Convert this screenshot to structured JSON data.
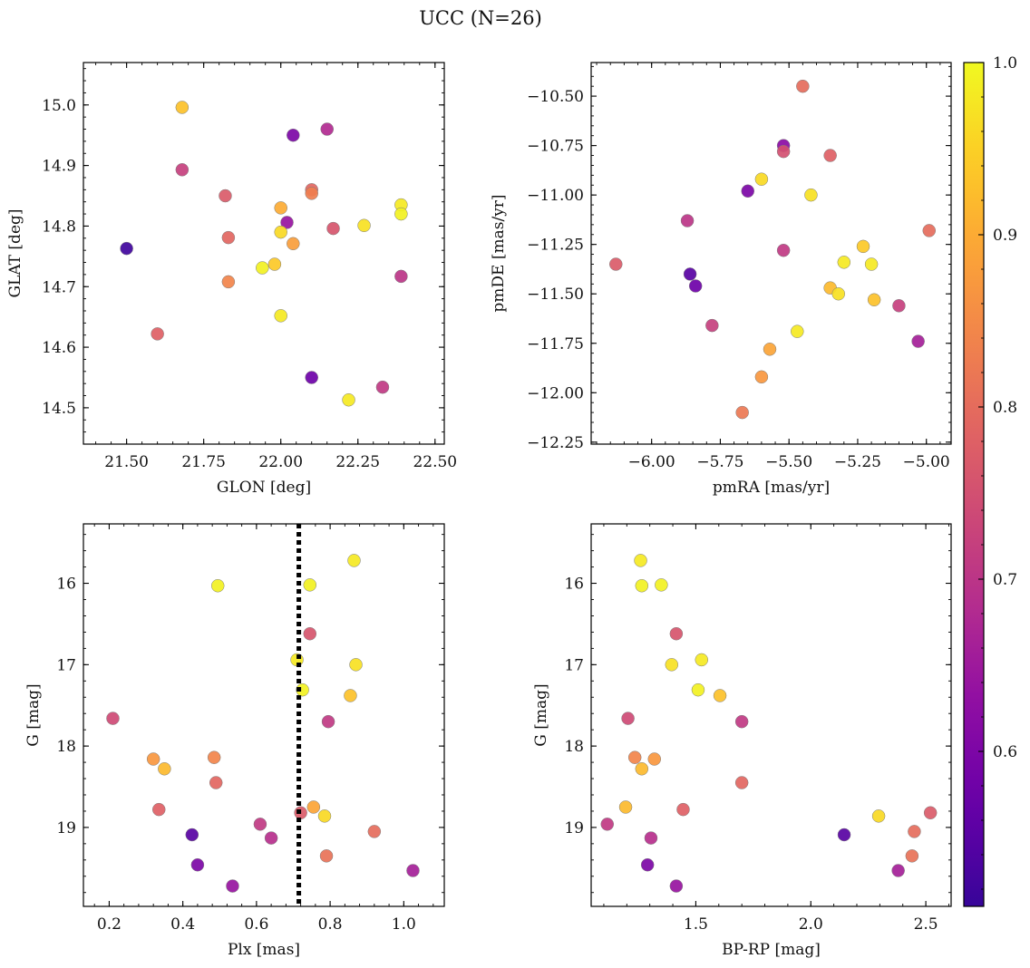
{
  "figure": {
    "title": "UCC (N=26)"
  },
  "colorbar": {
    "cmap": "plasma",
    "range": [
      0.51,
      1.0
    ],
    "ticks": [
      0.6,
      0.7,
      0.8,
      0.9,
      1.0
    ],
    "tick_labels": [
      "0.6",
      "0.7",
      "0.8",
      "0.9",
      "1.0"
    ]
  },
  "chart_data": [
    {
      "type": "scatter",
      "title": "",
      "xlabel": "GLON [deg]",
      "ylabel": "GLAT [deg]",
      "xlim": [
        21.36,
        22.53
      ],
      "ylim": [
        14.44,
        15.07
      ],
      "xticks": [
        21.5,
        21.75,
        22.0,
        22.25,
        22.5
      ],
      "xtick_labels": [
        "21.50",
        "21.75",
        "22.00",
        "22.25",
        "22.50"
      ],
      "yticks": [
        14.5,
        14.6,
        14.7,
        14.8,
        14.9,
        15.0
      ],
      "ytick_labels": [
        "14.5",
        "14.6",
        "14.7",
        "14.8",
        "14.9",
        "15.0"
      ],
      "inverted_y": false,
      "points": [
        {
          "x": 21.5,
          "y": 14.763,
          "c": 0.52
        },
        {
          "x": 21.6,
          "y": 14.622,
          "c": 0.78
        },
        {
          "x": 21.68,
          "y": 14.996,
          "c": 0.93
        },
        {
          "x": 21.68,
          "y": 14.893,
          "c": 0.72
        },
        {
          "x": 21.82,
          "y": 14.85,
          "c": 0.77
        },
        {
          "x": 21.83,
          "y": 14.781,
          "c": 0.79
        },
        {
          "x": 21.83,
          "y": 14.708,
          "c": 0.84
        },
        {
          "x": 21.94,
          "y": 14.731,
          "c": 0.99
        },
        {
          "x": 21.98,
          "y": 14.737,
          "c": 0.94
        },
        {
          "x": 22.0,
          "y": 14.83,
          "c": 0.9
        },
        {
          "x": 22.0,
          "y": 14.79,
          "c": 0.96
        },
        {
          "x": 22.0,
          "y": 14.652,
          "c": 0.98
        },
        {
          "x": 22.02,
          "y": 14.806,
          "c": 0.64
        },
        {
          "x": 22.04,
          "y": 14.95,
          "c": 0.6
        },
        {
          "x": 22.04,
          "y": 14.771,
          "c": 0.88
        },
        {
          "x": 22.1,
          "y": 14.854,
          "c": 0.83
        },
        {
          "x": 22.1,
          "y": 14.86,
          "c": 0.79
        },
        {
          "x": 22.1,
          "y": 14.55,
          "c": 0.58
        },
        {
          "x": 22.15,
          "y": 14.96,
          "c": 0.68
        },
        {
          "x": 22.17,
          "y": 14.796,
          "c": 0.76
        },
        {
          "x": 22.22,
          "y": 14.513,
          "c": 0.98
        },
        {
          "x": 22.27,
          "y": 14.801,
          "c": 0.97
        },
        {
          "x": 22.33,
          "y": 14.534,
          "c": 0.71
        },
        {
          "x": 22.39,
          "y": 14.835,
          "c": 0.98
        },
        {
          "x": 22.39,
          "y": 14.82,
          "c": 0.99
        },
        {
          "x": 22.39,
          "y": 14.717,
          "c": 0.7
        }
      ]
    },
    {
      "type": "scatter",
      "title": "",
      "xlabel": "pmRA [mas/yr]",
      "ylabel": "pmDE [mas/yr]",
      "xlim": [
        -6.22,
        -4.91
      ],
      "ylim": [
        -12.26,
        -10.33
      ],
      "xticks": [
        -6.0,
        -5.75,
        -5.5,
        -5.25,
        -5.0
      ],
      "xtick_labels": [
        "−6.00",
        "−5.75",
        "−5.50",
        "−5.25",
        "−5.00"
      ],
      "yticks": [
        -12.25,
        -12.0,
        -11.75,
        -11.5,
        -11.25,
        -11.0,
        -10.75,
        -10.5
      ],
      "ytick_labels": [
        "−12.25",
        "−12.00",
        "−11.75",
        "−11.50",
        "−11.25",
        "−11.00",
        "−10.75",
        "−10.50"
      ],
      "inverted_y": false,
      "points": [
        {
          "x": -6.13,
          "y": -11.35,
          "c": 0.77
        },
        {
          "x": -5.87,
          "y": -11.13,
          "c": 0.7
        },
        {
          "x": -5.86,
          "y": -11.4,
          "c": 0.55
        },
        {
          "x": -5.84,
          "y": -11.46,
          "c": 0.58
        },
        {
          "x": -5.78,
          "y": -11.66,
          "c": 0.72
        },
        {
          "x": -5.65,
          "y": -10.98,
          "c": 0.6
        },
        {
          "x": -5.67,
          "y": -12.1,
          "c": 0.82
        },
        {
          "x": -5.6,
          "y": -10.92,
          "c": 0.96
        },
        {
          "x": -5.6,
          "y": -11.92,
          "c": 0.87
        },
        {
          "x": -5.57,
          "y": -11.78,
          "c": 0.89
        },
        {
          "x": -5.52,
          "y": -10.78,
          "c": 0.75
        },
        {
          "x": -5.52,
          "y": -10.75,
          "c": 0.62
        },
        {
          "x": -5.52,
          "y": -11.28,
          "c": 0.71
        },
        {
          "x": -5.47,
          "y": -11.69,
          "c": 0.98
        },
        {
          "x": -5.45,
          "y": -10.45,
          "c": 0.8
        },
        {
          "x": -5.42,
          "y": -11.0,
          "c": 0.97
        },
        {
          "x": -5.35,
          "y": -10.8,
          "c": 0.78
        },
        {
          "x": -5.35,
          "y": -11.47,
          "c": 0.92
        },
        {
          "x": -5.32,
          "y": -11.5,
          "c": 0.97
        },
        {
          "x": -5.3,
          "y": -11.34,
          "c": 0.98
        },
        {
          "x": -5.23,
          "y": -11.26,
          "c": 0.94
        },
        {
          "x": -5.2,
          "y": -11.35,
          "c": 0.98
        },
        {
          "x": -5.19,
          "y": -11.53,
          "c": 0.93
        },
        {
          "x": -5.1,
          "y": -11.56,
          "c": 0.72
        },
        {
          "x": -5.03,
          "y": -11.74,
          "c": 0.66
        },
        {
          "x": -4.99,
          "y": -11.18,
          "c": 0.8
        }
      ]
    },
    {
      "type": "scatter",
      "title": "",
      "xlabel": "Plx [mas]",
      "ylabel": "G [mag]",
      "xlim": [
        0.13,
        1.11
      ],
      "ylim": [
        19.97,
        15.27
      ],
      "xticks": [
        0.2,
        0.4,
        0.6,
        0.8,
        1.0
      ],
      "xtick_labels": [
        "0.2",
        "0.4",
        "0.6",
        "0.8",
        "1.0"
      ],
      "yticks": [
        16,
        17,
        18,
        19
      ],
      "ytick_labels": [
        "16",
        "17",
        "18",
        "19"
      ],
      "inverted_y": true,
      "vline": 0.715,
      "points": [
        {
          "x": 0.21,
          "y": 17.66,
          "c": 0.74
        },
        {
          "x": 0.32,
          "y": 18.16,
          "c": 0.87
        },
        {
          "x": 0.335,
          "y": 18.78,
          "c": 0.78
        },
        {
          "x": 0.35,
          "y": 18.28,
          "c": 0.92
        },
        {
          "x": 0.425,
          "y": 19.09,
          "c": 0.55
        },
        {
          "x": 0.44,
          "y": 19.46,
          "c": 0.6
        },
        {
          "x": 0.485,
          "y": 18.14,
          "c": 0.84
        },
        {
          "x": 0.49,
          "y": 18.45,
          "c": 0.79
        },
        {
          "x": 0.495,
          "y": 16.03,
          "c": 0.99
        },
        {
          "x": 0.535,
          "y": 19.72,
          "c": 0.64
        },
        {
          "x": 0.61,
          "y": 18.96,
          "c": 0.71
        },
        {
          "x": 0.64,
          "y": 19.13,
          "c": 0.69
        },
        {
          "x": 0.71,
          "y": 16.94,
          "c": 0.98
        },
        {
          "x": 0.72,
          "y": 18.82,
          "c": 0.77
        },
        {
          "x": 0.725,
          "y": 17.31,
          "c": 0.99
        },
        {
          "x": 0.745,
          "y": 16.62,
          "c": 0.76
        },
        {
          "x": 0.745,
          "y": 16.02,
          "c": 0.99
        },
        {
          "x": 0.755,
          "y": 18.75,
          "c": 0.89
        },
        {
          "x": 0.785,
          "y": 18.86,
          "c": 0.96
        },
        {
          "x": 0.79,
          "y": 19.35,
          "c": 0.81
        },
        {
          "x": 0.795,
          "y": 17.7,
          "c": 0.71
        },
        {
          "x": 0.855,
          "y": 17.38,
          "c": 0.93
        },
        {
          "x": 0.865,
          "y": 15.72,
          "c": 0.98
        },
        {
          "x": 0.87,
          "y": 17.0,
          "c": 0.97
        },
        {
          "x": 0.92,
          "y": 19.05,
          "c": 0.8
        },
        {
          "x": 1.025,
          "y": 19.53,
          "c": 0.66
        }
      ]
    },
    {
      "type": "scatter",
      "title": "",
      "xlabel": "BP-RP [mag]",
      "ylabel": "G [mag]",
      "xlim": [
        1.045,
        2.61
      ],
      "ylim": [
        19.97,
        15.27
      ],
      "xticks": [
        1.5,
        2.0,
        2.5
      ],
      "xtick_labels": [
        "1.5",
        "2.0",
        "2.5"
      ],
      "yticks": [
        16,
        17,
        18,
        19
      ],
      "ytick_labels": [
        "16",
        "17",
        "18",
        "19"
      ],
      "inverted_y": true,
      "points": [
        {
          "x": 1.115,
          "y": 18.96,
          "c": 0.71
        },
        {
          "x": 1.195,
          "y": 18.75,
          "c": 0.92
        },
        {
          "x": 1.205,
          "y": 17.66,
          "c": 0.74
        },
        {
          "x": 1.235,
          "y": 18.14,
          "c": 0.84
        },
        {
          "x": 1.26,
          "y": 15.72,
          "c": 0.98
        },
        {
          "x": 1.265,
          "y": 16.03,
          "c": 0.99
        },
        {
          "x": 1.265,
          "y": 18.28,
          "c": 0.92
        },
        {
          "x": 1.29,
          "y": 19.46,
          "c": 0.6
        },
        {
          "x": 1.305,
          "y": 19.13,
          "c": 0.69
        },
        {
          "x": 1.32,
          "y": 18.16,
          "c": 0.87
        },
        {
          "x": 1.35,
          "y": 16.02,
          "c": 0.99
        },
        {
          "x": 1.395,
          "y": 17.0,
          "c": 0.97
        },
        {
          "x": 1.415,
          "y": 16.62,
          "c": 0.76
        },
        {
          "x": 1.415,
          "y": 19.72,
          "c": 0.64
        },
        {
          "x": 1.445,
          "y": 18.78,
          "c": 0.78
        },
        {
          "x": 1.51,
          "y": 17.31,
          "c": 0.99
        },
        {
          "x": 1.525,
          "y": 16.94,
          "c": 0.98
        },
        {
          "x": 1.605,
          "y": 17.38,
          "c": 0.93
        },
        {
          "x": 1.7,
          "y": 17.7,
          "c": 0.71
        },
        {
          "x": 1.7,
          "y": 18.45,
          "c": 0.79
        },
        {
          "x": 2.145,
          "y": 19.09,
          "c": 0.55
        },
        {
          "x": 2.295,
          "y": 18.86,
          "c": 0.96
        },
        {
          "x": 2.38,
          "y": 19.53,
          "c": 0.66
        },
        {
          "x": 2.44,
          "y": 19.35,
          "c": 0.81
        },
        {
          "x": 2.45,
          "y": 19.05,
          "c": 0.8
        },
        {
          "x": 2.52,
          "y": 18.82,
          "c": 0.77
        }
      ]
    }
  ]
}
